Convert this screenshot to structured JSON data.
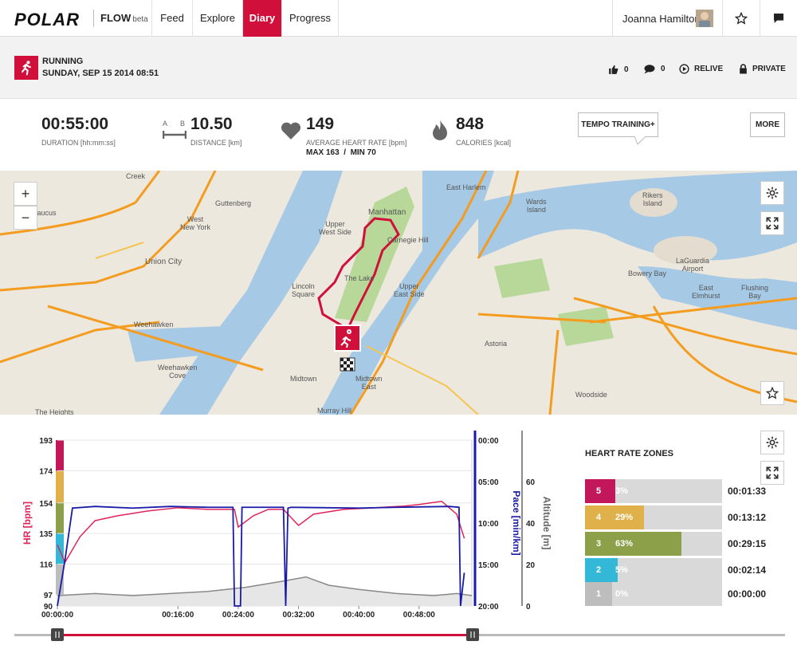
{
  "nav": {
    "logo": "POLAR",
    "app": "FLOW",
    "app_tag": "beta",
    "tabs": [
      {
        "label": "Feed"
      },
      {
        "label": "Explore"
      },
      {
        "label": "Diary"
      },
      {
        "label": "Progress"
      }
    ],
    "active_tab": "Diary",
    "user_name": "Joanna Hamilton"
  },
  "session": {
    "sport": "RUNNING",
    "date": "SUNDAY, SEP 15 2014 08:51",
    "likes": "0",
    "comments": "0",
    "relive_label": "RELIVE",
    "privacy_label": "PRIVATE"
  },
  "stats": {
    "duration": {
      "value": "00:55:00",
      "label": "DURATION [hh:mm:ss]"
    },
    "distance": {
      "value": "10.50",
      "label": "DISTANCE [km]",
      "icon_a": "A",
      "icon_b": "B"
    },
    "heart_rate": {
      "value": "149",
      "label": "AVERAGE HEART RATE [bpm]",
      "extra": "MAX 163  /  MIN 70"
    },
    "calories": {
      "value": "848",
      "label": "CALORIES [kcal]"
    },
    "tempo_button": "TEMPO TRAINING+",
    "more_button": "MORE"
  },
  "map": {
    "labels": [
      "Creek",
      "Guttenberg",
      "West\nNew York",
      "Union City",
      "Weehawken",
      "Weehawken\nCove",
      "The Heights",
      "Manhattan",
      "Upper\nWest Side",
      "Carnegie Hill",
      "The Lake",
      "Upper\nEast Side",
      "Lincoln\nSquare",
      "Midtown",
      "Midtown\nEast",
      "Murray Hill",
      "East Harlem",
      "Wards\nIsland",
      "Rikers\nIsland",
      "LaGuardia\nAirport",
      "Bowery Bay",
      "East\nElmhurst",
      "Flushing\nBay",
      "Astoria",
      "Woodside",
      "Caucus"
    ],
    "zoom_in": "+",
    "zoom_out": "−"
  },
  "chart_data": {
    "type": "line",
    "x_ticks": [
      "00:00:00",
      "00:16:00",
      "00:24:00",
      "00:32:00",
      "00:40:00",
      "00:48:00"
    ],
    "x_range_min": [
      0,
      55
    ],
    "hr_axis": {
      "label": "HR [bpm]",
      "ticks": [
        193,
        174,
        154,
        135,
        116,
        97,
        90
      ],
      "range": [
        90,
        193
      ]
    },
    "pace_axis": {
      "label": "Pace [min/km]",
      "ticks": [
        "00:00",
        "05:00",
        "10:00",
        "15:00",
        "20:00"
      ],
      "range_min": [
        0,
        20
      ]
    },
    "altitude_axis": {
      "label": "Altitude [m]",
      "ticks": [
        0,
        20,
        40,
        60
      ],
      "range": [
        0,
        80
      ]
    },
    "series": [
      {
        "name": "HR [bpm]",
        "color": "#e0245a",
        "x": [
          0,
          1,
          3,
          5,
          8,
          12,
          16,
          20,
          23.5,
          24,
          26,
          28,
          30,
          32,
          34,
          38,
          42,
          46,
          48,
          51,
          53,
          54
        ],
        "values": [
          128,
          117,
          133,
          143,
          146,
          149,
          151,
          150,
          150,
          139,
          146,
          150,
          150,
          140,
          147,
          150,
          151,
          152,
          153,
          155,
          147,
          132
        ]
      },
      {
        "name": "Pace [min/km]",
        "color": "#1a1aa8",
        "x": [
          0,
          1,
          2,
          5,
          10,
          15,
          20,
          23.3,
          23.5,
          24.3,
          24.5,
          30,
          30.3,
          30.6,
          31,
          40,
          45,
          52,
          53.3,
          53.5,
          54
        ],
        "values": [
          20,
          14.5,
          8.2,
          8.0,
          8.2,
          8.0,
          8.1,
          8.1,
          20,
          20,
          8.1,
          8.1,
          20,
          8.2,
          8.1,
          8.2,
          8.1,
          8.0,
          8.1,
          20,
          16
        ]
      },
      {
        "name": "Altitude [m]",
        "color": "#888888",
        "x": [
          0,
          5,
          10,
          15,
          20,
          25,
          30,
          33,
          36,
          40,
          45,
          50,
          53,
          55
        ],
        "values": [
          5,
          6,
          5,
          6,
          7,
          9,
          12,
          14,
          10,
          8,
          6,
          5,
          6,
          5
        ]
      }
    ],
    "hr_zone_bands": [
      {
        "zone": 5,
        "from": 174,
        "to": 193,
        "color": "#c2185b"
      },
      {
        "zone": 4,
        "from": 154,
        "to": 174,
        "color": "#e0b04a"
      },
      {
        "zone": 3,
        "from": 135,
        "to": 154,
        "color": "#8ca04a"
      },
      {
        "zone": 2,
        "from": 116,
        "to": 135,
        "color": "#34b8d8"
      },
      {
        "zone": 1,
        "from": 97,
        "to": 116,
        "color": "#bdbdbd"
      }
    ]
  },
  "zones": {
    "title": "HEART RATE ZONES",
    "rows": [
      {
        "zone": "5",
        "pct": "3%",
        "fraction": 0.03,
        "time": "00:01:33",
        "color": "#c2185b"
      },
      {
        "zone": "4",
        "pct": "29%",
        "fraction": 0.29,
        "time": "00:13:12",
        "color": "#e0b04a"
      },
      {
        "zone": "3",
        "pct": "63%",
        "fraction": 0.63,
        "time": "00:29:15",
        "color": "#8ca04a"
      },
      {
        "zone": "2",
        "pct": "5%",
        "fraction": 0.05,
        "time": "00:02:14",
        "color": "#34b8d8"
      },
      {
        "zone": "1",
        "pct": "0%",
        "fraction": 0.0,
        "time": "00:00:00",
        "color": "#bdbdbd"
      }
    ]
  },
  "colors": {
    "accent": "#d0103a",
    "map_water": "#a6c9e6",
    "map_land": "#ede8de",
    "map_park": "#b8d89a",
    "road": "#f39c1f"
  }
}
